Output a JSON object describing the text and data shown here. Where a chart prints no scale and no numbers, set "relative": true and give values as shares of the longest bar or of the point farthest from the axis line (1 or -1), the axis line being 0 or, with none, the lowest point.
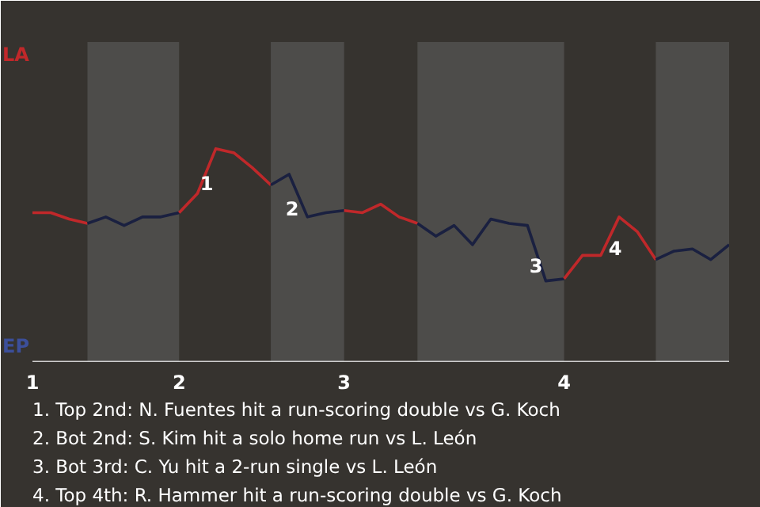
{
  "chart_data": {
    "type": "line",
    "relative": true,
    "categories": [
      "1",
      null,
      null,
      null,
      null,
      null,
      null,
      null,
      "2",
      null,
      null,
      null,
      null,
      null,
      null,
      null,
      null,
      "3",
      null,
      null,
      null,
      null,
      null,
      null,
      null,
      null,
      null,
      null,
      null,
      "4",
      null,
      null,
      null,
      null,
      null,
      null,
      null,
      null,
      null
    ],
    "series": [
      {
        "color": "#c0282a",
        "values": [
          0.7,
          0.7,
          0.67,
          0.65,
          null,
          null,
          null,
          null,
          null,
          null,
          null,
          null,
          null,
          null,
          null,
          null,
          null,
          null,
          null,
          null,
          null,
          null,
          null,
          null,
          null,
          null,
          null,
          null,
          null,
          null,
          null,
          null,
          null,
          null,
          null,
          null,
          null,
          null,
          null
        ]
      },
      {
        "color": "#1a2040",
        "values": [
          null,
          null,
          null,
          0.65,
          0.68,
          0.64,
          0.68,
          0.68,
          0.7,
          null,
          null,
          null,
          null,
          null,
          null,
          null,
          null,
          null,
          null,
          null,
          null,
          null,
          null,
          null,
          null,
          null,
          null,
          null,
          null,
          null,
          null,
          null,
          null,
          null,
          null,
          null,
          null,
          null,
          null
        ]
      },
      {
        "color": "#c0282a",
        "values": [
          null,
          null,
          null,
          null,
          null,
          null,
          null,
          null,
          0.7,
          0.79,
          1,
          0.98,
          0.91,
          0.83,
          null,
          null,
          null,
          null,
          null,
          null,
          null,
          null,
          null,
          null,
          null,
          null,
          null,
          null,
          null,
          null,
          null,
          null,
          null,
          null,
          null,
          null,
          null,
          null,
          null
        ]
      },
      {
        "color": "#1a2040",
        "values": [
          null,
          null,
          null,
          null,
          null,
          null,
          null,
          null,
          null,
          null,
          null,
          null,
          null,
          0.83,
          0.88,
          0.68,
          0.7,
          0.71,
          null,
          null,
          null,
          null,
          null,
          null,
          null,
          null,
          null,
          null,
          null,
          null,
          null,
          null,
          null,
          null,
          null,
          null,
          null,
          null,
          null
        ]
      },
      {
        "color": "#c0282a",
        "values": [
          null,
          null,
          null,
          null,
          null,
          null,
          null,
          null,
          null,
          null,
          null,
          null,
          null,
          null,
          null,
          null,
          null,
          0.71,
          0.7,
          0.74,
          0.68,
          0.65,
          null,
          null,
          null,
          null,
          null,
          null,
          null,
          null,
          null,
          null,
          null,
          null,
          null,
          null,
          null,
          null,
          null
        ]
      },
      {
        "color": "#1a2040",
        "values": [
          null,
          null,
          null,
          null,
          null,
          null,
          null,
          null,
          null,
          null,
          null,
          null,
          null,
          null,
          null,
          null,
          null,
          null,
          null,
          null,
          null,
          0.65,
          0.59,
          0.64,
          0.55,
          0.67,
          0.65,
          0.64,
          0.38,
          0.39,
          null,
          null,
          null,
          null,
          null,
          null,
          null,
          null,
          null
        ]
      },
      {
        "color": "#c0282a",
        "values": [
          null,
          null,
          null,
          null,
          null,
          null,
          null,
          null,
          null,
          null,
          null,
          null,
          null,
          null,
          null,
          null,
          null,
          null,
          null,
          null,
          null,
          null,
          null,
          null,
          null,
          null,
          null,
          null,
          null,
          0.39,
          0.5,
          0.5,
          0.68,
          0.61,
          0.48,
          null,
          null,
          null,
          null
        ]
      },
      {
        "color": "#1a2040",
        "values": [
          null,
          null,
          null,
          null,
          null,
          null,
          null,
          null,
          null,
          null,
          null,
          null,
          null,
          null,
          null,
          null,
          null,
          null,
          null,
          null,
          null,
          null,
          null,
          null,
          null,
          null,
          null,
          null,
          null,
          null,
          null,
          null,
          null,
          null,
          0.48,
          0.52,
          0.53,
          0.48,
          0.55
        ]
      }
    ],
    "annotations": [
      "LA",
      "EP",
      "1",
      "2",
      "3",
      "4",
      "1. Top 2nd: N. Fuentes hit a run-scoring double vs G. Koch",
      "2. Bot 2nd: S. Kim hit a solo home run vs L. León",
      "3. Bot 3rd: C. Yu hit a 2-run single vs L. León",
      "4. Top 4th: R. Hammer hit a run-scoring double vs G. Koch"
    ]
  }
}
